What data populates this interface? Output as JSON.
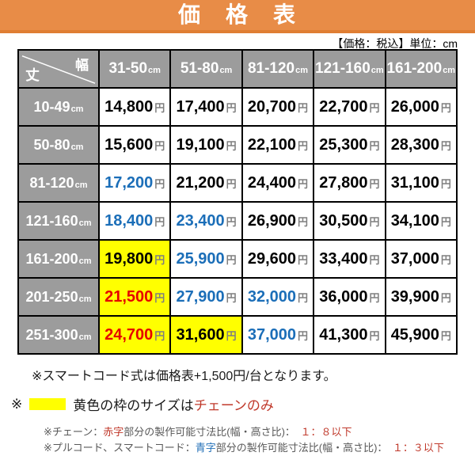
{
  "header": {
    "title": "価　格　表"
  },
  "subheader": {
    "note": "【価格：税込】単位：cm"
  },
  "table": {
    "corner": {
      "top_label": "幅",
      "bottom_label": "丈"
    },
    "unit": "cm",
    "yen": "円",
    "col_headers": [
      "31-50",
      "51-80",
      "81-120",
      "121-160",
      "161-200"
    ],
    "rows": [
      {
        "label": "10-49",
        "cells": [
          {
            "v": "14,800",
            "color": "black",
            "bg": "white"
          },
          {
            "v": "17,400",
            "color": "black",
            "bg": "white"
          },
          {
            "v": "20,700",
            "color": "black",
            "bg": "white"
          },
          {
            "v": "22,700",
            "color": "black",
            "bg": "white"
          },
          {
            "v": "26,000",
            "color": "black",
            "bg": "white"
          }
        ]
      },
      {
        "label": "50-80",
        "cells": [
          {
            "v": "15,600",
            "color": "black",
            "bg": "white"
          },
          {
            "v": "19,100",
            "color": "black",
            "bg": "white"
          },
          {
            "v": "22,100",
            "color": "black",
            "bg": "white"
          },
          {
            "v": "25,300",
            "color": "black",
            "bg": "white"
          },
          {
            "v": "28,300",
            "color": "black",
            "bg": "white"
          }
        ]
      },
      {
        "label": "81-120",
        "cells": [
          {
            "v": "17,200",
            "color": "blue",
            "bg": "white"
          },
          {
            "v": "21,200",
            "color": "black",
            "bg": "white"
          },
          {
            "v": "24,400",
            "color": "black",
            "bg": "white"
          },
          {
            "v": "27,800",
            "color": "black",
            "bg": "white"
          },
          {
            "v": "31,100",
            "color": "black",
            "bg": "white"
          }
        ]
      },
      {
        "label": "121-160",
        "cells": [
          {
            "v": "18,400",
            "color": "blue",
            "bg": "white"
          },
          {
            "v": "23,400",
            "color": "blue",
            "bg": "white"
          },
          {
            "v": "26,900",
            "color": "black",
            "bg": "white"
          },
          {
            "v": "30,500",
            "color": "black",
            "bg": "white"
          },
          {
            "v": "34,100",
            "color": "black",
            "bg": "white"
          }
        ]
      },
      {
        "label": "161-200",
        "cells": [
          {
            "v": "19,800",
            "color": "black",
            "bg": "yellow"
          },
          {
            "v": "25,900",
            "color": "blue",
            "bg": "white"
          },
          {
            "v": "29,600",
            "color": "black",
            "bg": "white"
          },
          {
            "v": "33,400",
            "color": "black",
            "bg": "white"
          },
          {
            "v": "37,000",
            "color": "black",
            "bg": "white"
          }
        ]
      },
      {
        "label": "201-250",
        "cells": [
          {
            "v": "21,500",
            "color": "red",
            "bg": "yellow"
          },
          {
            "v": "27,900",
            "color": "blue",
            "bg": "white"
          },
          {
            "v": "32,000",
            "color": "blue",
            "bg": "white"
          },
          {
            "v": "36,000",
            "color": "black",
            "bg": "white"
          },
          {
            "v": "39,900",
            "color": "black",
            "bg": "white"
          }
        ]
      },
      {
        "label": "251-300",
        "cells": [
          {
            "v": "24,700",
            "color": "red",
            "bg": "yellow"
          },
          {
            "v": "31,600",
            "color": "black",
            "bg": "yellow"
          },
          {
            "v": "37,000",
            "color": "blue",
            "bg": "white"
          },
          {
            "v": "41,300",
            "color": "black",
            "bg": "white"
          },
          {
            "v": "45,900",
            "color": "black",
            "bg": "white"
          }
        ]
      }
    ]
  },
  "notes": {
    "smart_cord": "※スマートコード式は価格表+1,500円/台となります。",
    "yellow": {
      "prefix": "※",
      "mid": "黄色の枠のサイズは",
      "red_text": "チェーンのみ"
    },
    "chain": [
      {
        "t": "※チェーン：",
        "c": "g"
      },
      {
        "t": "赤字",
        "c": "r"
      },
      {
        "t": "部分の製作可能寸法比(幅・高さ比)：　",
        "c": "g"
      },
      {
        "t": "１：８以下",
        "c": "r"
      }
    ],
    "pull_cord": [
      {
        "t": "※プルコード、スマートコード：",
        "c": "g"
      },
      {
        "t": "青字",
        "c": "b"
      },
      {
        "t": "部分の製作可能寸法比(幅・高さ比)：　",
        "c": "g"
      },
      {
        "t": "１：３以下",
        "c": "r"
      }
    ]
  },
  "colors": {
    "accent_orange": "#E88C47",
    "header_gray": "#9C9C9C",
    "highlight_yellow": "#FFFF00",
    "price_blue": "#1B6EB8",
    "price_red": "#E60000",
    "note_red": "#C0392B",
    "note_blue": "#2471B8"
  }
}
